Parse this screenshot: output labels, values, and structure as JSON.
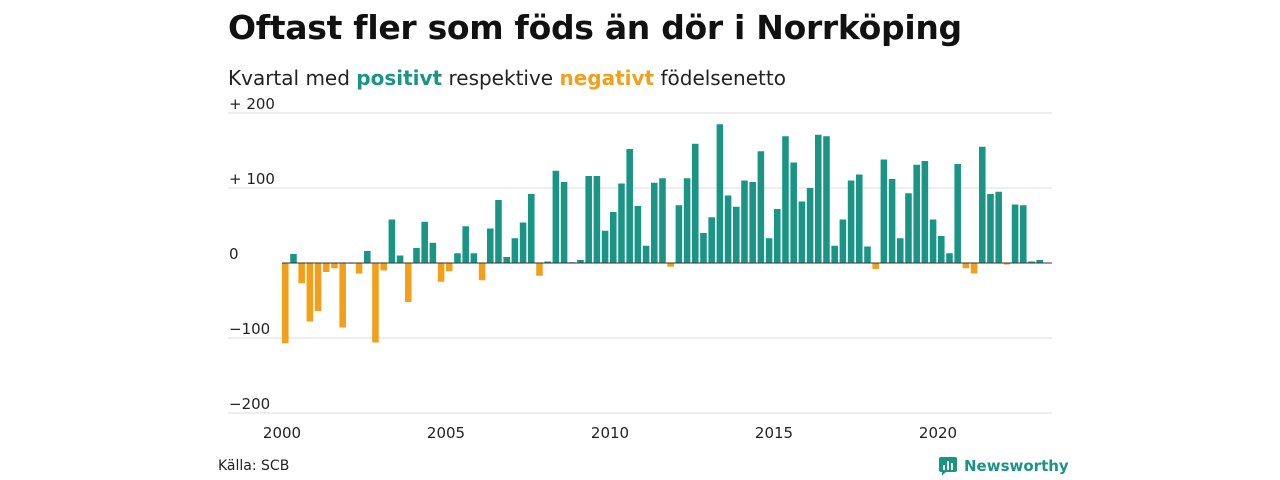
{
  "title": "Oftast fler som föds än dör i Norrköping",
  "subtitle": {
    "before": "Kvartal med ",
    "positive_word": "positivt",
    "middle": " respektive ",
    "negative_word": "negativt",
    "after": " födelsenetto"
  },
  "source": "Källa: SCB",
  "brand": {
    "name": "Newsworthy",
    "icon": "newsworthy-logo-icon"
  },
  "colors": {
    "positive": "#1a9585",
    "negative": "#f2a01b",
    "grid": "#dddddd",
    "zero": "#333333"
  },
  "chart_data": {
    "type": "bar",
    "x_start_year": 2000,
    "periods_per_year": 4,
    "ylim": [
      -200,
      200
    ],
    "y_ticks": [
      {
        "value": 200,
        "label": "+ 200"
      },
      {
        "value": 100,
        "label": "+ 100"
      },
      {
        "value": 0,
        "label": "0"
      },
      {
        "value": -100,
        "label": "−100"
      },
      {
        "value": -200,
        "label": "−200"
      }
    ],
    "x_ticks": [
      "2000",
      "2005",
      "2010",
      "2015",
      "2020"
    ],
    "grid": true,
    "values": [
      -107,
      12,
      -27,
      -78,
      -64,
      -12,
      -7,
      -86,
      -1,
      -14,
      16,
      -106,
      -10,
      58,
      10,
      -52,
      20,
      55,
      27,
      -25,
      -11,
      13,
      49,
      13,
      -23,
      46,
      84,
      8,
      33,
      54,
      92,
      -17,
      2,
      123,
      108,
      1,
      4,
      116,
      116,
      43,
      68,
      106,
      152,
      76,
      23,
      107,
      113,
      -5,
      77,
      113,
      159,
      40,
      61,
      185,
      90,
      75,
      110,
      108,
      149,
      33,
      72,
      169,
      134,
      82,
      100,
      171,
      169,
      23,
      58,
      110,
      118,
      22,
      -8,
      138,
      112,
      33,
      93,
      131,
      136,
      58,
      36,
      13,
      132,
      -7,
      -14,
      155,
      92,
      95,
      -2,
      78,
      77,
      2,
      4
    ]
  }
}
